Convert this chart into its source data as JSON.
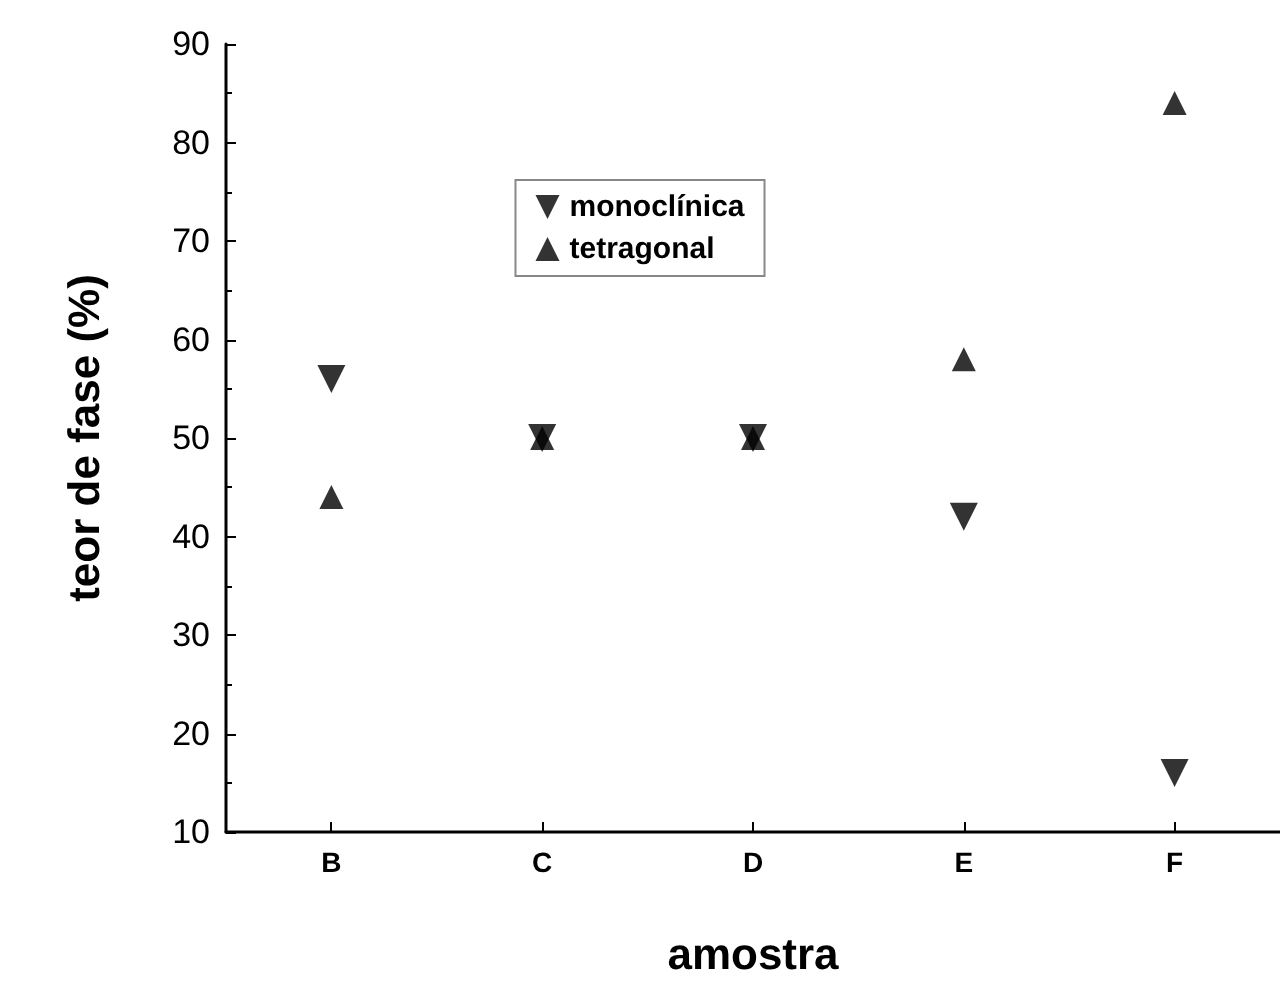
{
  "chart_data": {
    "type": "scatter",
    "xlabel": "amostra",
    "ylabel": "teor de fase (%)",
    "categories": [
      "B",
      "C",
      "D",
      "E",
      "F"
    ],
    "series": [
      {
        "name": "monoclínica",
        "color": "#000000",
        "marker": "triangle-down",
        "values": [
          56,
          50,
          50,
          42,
          16
        ]
      },
      {
        "name": "tetragonal",
        "color": "#000000",
        "marker": "triangle",
        "values": [
          44,
          50,
          50,
          58,
          84
        ]
      }
    ],
    "ylim": [
      10,
      90
    ],
    "yticks": [
      10,
      20,
      30,
      40,
      50,
      60,
      70,
      80,
      90
    ],
    "grid": false,
    "legend": "top"
  }
}
